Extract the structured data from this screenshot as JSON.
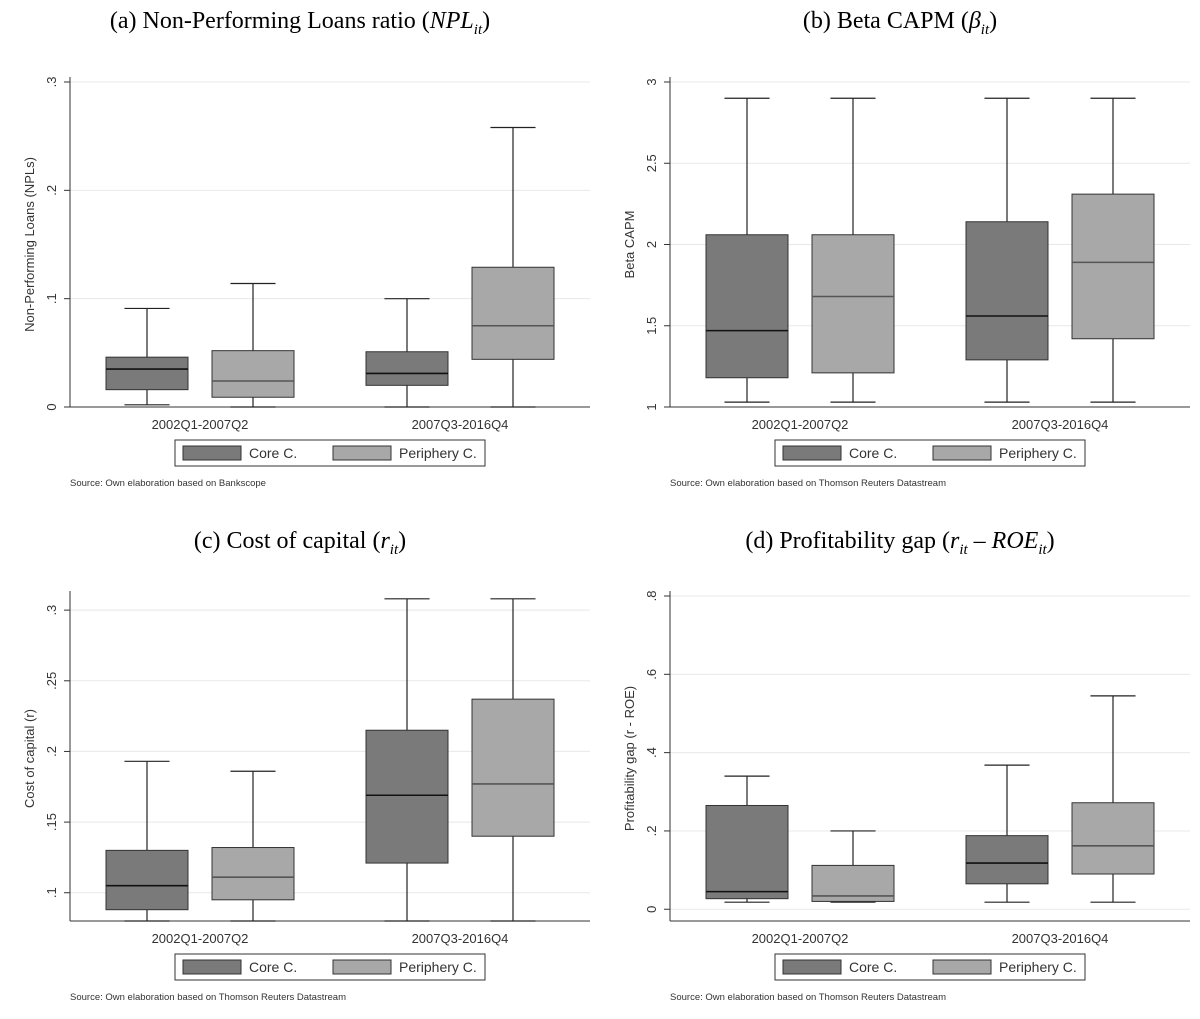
{
  "panels": [
    {
      "title_prefix": "(a) Non-Performing Loans ratio (",
      "title_main": "NPL",
      "title_sub": "it",
      "title_suffix": ")"
    },
    {
      "title_prefix": "(b) Beta CAPM (",
      "title_main": "β",
      "title_sub": "it",
      "title_suffix": ")"
    },
    {
      "title_prefix": "(c) Cost of capital (",
      "title_main": "r",
      "title_sub": "it",
      "title_suffix": ")"
    },
    {
      "title_prefix": "(d) Profitability gap (",
      "title_main": "r",
      "title_sub": "it",
      "title_suffix": " – ROE",
      "title_sub2": "it",
      "title_suffix2": ")"
    }
  ],
  "colors": {
    "core": "#7a7a7a",
    "periphery": "#a8a8a8",
    "grid": "#e8e8e8",
    "median": "#222222"
  },
  "chart_data": [
    {
      "type": "boxplot",
      "ylabel": "Non-Performing Loans (NPLs)",
      "ylim": [
        0,
        0.3
      ],
      "yticks": [
        0,
        0.1,
        0.2,
        0.3
      ],
      "ytick_labels": [
        "0",
        ".1",
        ".2",
        ".3"
      ],
      "categories": [
        "2002Q1-2007Q2",
        "2007Q3-2016Q4"
      ],
      "series": [
        {
          "name": "Core C.",
          "boxes": [
            {
              "whisker_low": 0.002,
              "q1": 0.016,
              "median": 0.035,
              "q3": 0.046,
              "whisker_high": 0.091
            },
            {
              "whisker_low": 0.0,
              "q1": 0.02,
              "median": 0.031,
              "q3": 0.051,
              "whisker_high": 0.1
            }
          ]
        },
        {
          "name": "Periphery C.",
          "boxes": [
            {
              "whisker_low": 0.0,
              "q1": 0.009,
              "median": 0.024,
              "q3": 0.052,
              "whisker_high": 0.114
            },
            {
              "whisker_low": 0.0,
              "q1": 0.044,
              "median": 0.075,
              "q3": 0.129,
              "whisker_high": 0.258
            }
          ]
        }
      ],
      "legend": [
        "Core C.",
        "Periphery C."
      ],
      "legend_position": "bottom",
      "source": "Source: Own elaboration based on Bankscope",
      "grid": true
    },
    {
      "type": "boxplot",
      "ylabel": "Beta CAPM",
      "ylim": [
        1,
        3
      ],
      "yticks": [
        1,
        1.5,
        2,
        2.5,
        3
      ],
      "ytick_labels": [
        "1",
        "1.5",
        "2",
        "2.5",
        "3"
      ],
      "categories": [
        "2002Q1-2007Q2",
        "2007Q3-2016Q4"
      ],
      "series": [
        {
          "name": "Core C.",
          "boxes": [
            {
              "whisker_low": 1.03,
              "q1": 1.18,
              "median": 1.47,
              "q3": 2.06,
              "whisker_high": 2.9
            },
            {
              "whisker_low": 1.03,
              "q1": 1.29,
              "median": 1.56,
              "q3": 2.14,
              "whisker_high": 2.9
            }
          ]
        },
        {
          "name": "Periphery C.",
          "boxes": [
            {
              "whisker_low": 1.03,
              "q1": 1.21,
              "median": 1.68,
              "q3": 2.06,
              "whisker_high": 2.9
            },
            {
              "whisker_low": 1.03,
              "q1": 1.42,
              "median": 1.89,
              "q3": 2.31,
              "whisker_high": 2.9
            }
          ]
        }
      ],
      "legend": [
        "Core C.",
        "Periphery C."
      ],
      "legend_position": "bottom",
      "source": "Source: Own elaboration based on Thomson Reuters Datastream",
      "grid": true
    },
    {
      "type": "boxplot",
      "ylabel": "Cost of capital (r)",
      "ylim": [
        0.08,
        0.31
      ],
      "yticks": [
        0.1,
        0.15,
        0.2,
        0.25,
        0.3
      ],
      "ytick_labels": [
        ".1",
        ".15",
        ".2",
        ".25",
        ".3"
      ],
      "categories": [
        "2002Q1-2007Q2",
        "2007Q3-2016Q4"
      ],
      "series": [
        {
          "name": "Core C.",
          "boxes": [
            {
              "whisker_low": 0.08,
              "q1": 0.088,
              "median": 0.105,
              "q3": 0.13,
              "whisker_high": 0.193
            },
            {
              "whisker_low": 0.08,
              "q1": 0.121,
              "median": 0.169,
              "q3": 0.215,
              "whisker_high": 0.308
            }
          ]
        },
        {
          "name": "Periphery C.",
          "boxes": [
            {
              "whisker_low": 0.08,
              "q1": 0.095,
              "median": 0.111,
              "q3": 0.132,
              "whisker_high": 0.186
            },
            {
              "whisker_low": 0.08,
              "q1": 0.14,
              "median": 0.177,
              "q3": 0.237,
              "whisker_high": 0.308
            }
          ]
        }
      ],
      "legend": [
        "Core C.",
        "Periphery C."
      ],
      "legend_position": "bottom",
      "source": "Source: Own elaboration based on Thomson Reuters Datastream",
      "grid": true
    },
    {
      "type": "boxplot",
      "ylabel": "Profitability gap (r - ROE)",
      "ylim": [
        -0.03,
        0.8
      ],
      "yticks": [
        0,
        0.2,
        0.4,
        0.6,
        0.8
      ],
      "ytick_labels": [
        "0",
        ".2",
        ".4",
        ".6",
        ".8"
      ],
      "categories": [
        "2002Q1-2007Q2",
        "2007Q3-2016Q4"
      ],
      "series": [
        {
          "name": "Core C.",
          "boxes": [
            {
              "whisker_low": 0.018,
              "q1": 0.027,
              "median": 0.045,
              "q3": 0.265,
              "whisker_high": 0.34
            },
            {
              "whisker_low": 0.018,
              "q1": 0.065,
              "median": 0.118,
              "q3": 0.188,
              "whisker_high": 0.368
            }
          ]
        },
        {
          "name": "Periphery C.",
          "boxes": [
            {
              "whisker_low": 0.018,
              "q1": 0.02,
              "median": 0.034,
              "q3": 0.112,
              "whisker_high": 0.2
            },
            {
              "whisker_low": 0.018,
              "q1": 0.09,
              "median": 0.162,
              "q3": 0.272,
              "whisker_high": 0.545
            }
          ]
        }
      ],
      "legend": [
        "Core C.",
        "Periphery C."
      ],
      "legend_position": "bottom",
      "source": "Source: Own elaboration based on Thomson Reuters Datastream",
      "grid": true
    }
  ]
}
